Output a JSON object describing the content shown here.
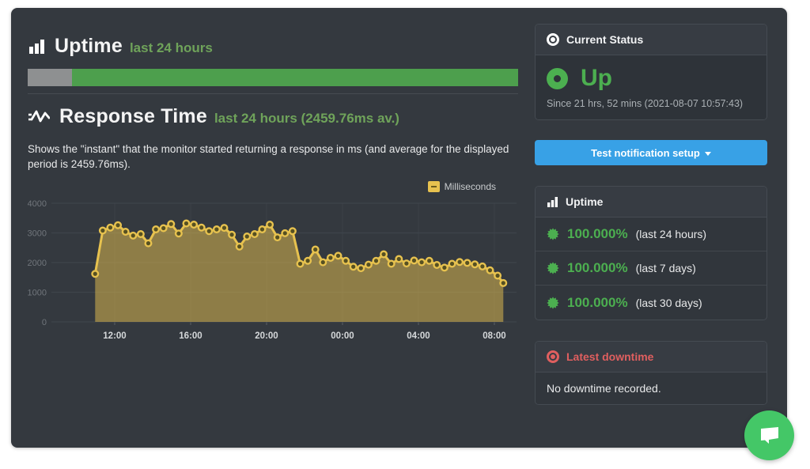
{
  "uptime_section": {
    "title": "Uptime",
    "subtitle": "last 24 hours",
    "bar": {
      "unknown_pct": 9,
      "up_pct": 91,
      "gray_color": "#8e9091",
      "green_color": "#4d9f4d"
    }
  },
  "response_section": {
    "title": "Response Time",
    "subtitle": "last 24 hours (2459.76ms av.)",
    "description": "Shows the \"instant\" that the monitor started returning a response in ms (and average for the displayed period is 2459.76ms)."
  },
  "chart_data": {
    "type": "area",
    "title": "Response Time last 24 hours",
    "legend": "Milliseconds",
    "legend_position": "top-right",
    "ylim": [
      0,
      4000
    ],
    "yticks": [
      0,
      1000,
      2000,
      3000,
      4000
    ],
    "xticks": [
      {
        "hour": 12,
        "label": "12:00"
      },
      {
        "hour": 16,
        "label": "16:00"
      },
      {
        "hour": 20,
        "label": "20:00"
      },
      {
        "hour": 24,
        "label": "00:00"
      },
      {
        "hour": 28,
        "label": "04:00"
      },
      {
        "hour": 32,
        "label": "08:00"
      }
    ],
    "average_ms": 2459.76,
    "line_color": "#e7c24f",
    "fill_color": "rgba(231,194,79,0.5)",
    "marker_center_color": "#565022",
    "grid": true,
    "series": [
      {
        "name": "Milliseconds",
        "x_hours": [
          10.97,
          11.37,
          11.77,
          12.17,
          12.57,
          12.97,
          13.37,
          13.77,
          14.17,
          14.57,
          14.97,
          15.37,
          15.77,
          16.17,
          16.57,
          16.97,
          17.37,
          17.77,
          18.17,
          18.57,
          18.97,
          19.37,
          19.77,
          20.17,
          20.57,
          20.97,
          21.37,
          21.77,
          22.17,
          22.57,
          22.97,
          23.37,
          23.77,
          24.17,
          24.57,
          24.97,
          25.37,
          25.77,
          26.17,
          26.57,
          26.97,
          27.37,
          27.77,
          28.17,
          28.57,
          28.97,
          29.37,
          29.77,
          30.17,
          30.57,
          30.97,
          31.37,
          31.77,
          32.17,
          32.47
        ],
        "values": [
          1620,
          3080,
          3180,
          3260,
          3040,
          2910,
          2960,
          2650,
          3120,
          3160,
          3300,
          2980,
          3320,
          3280,
          3180,
          3060,
          3120,
          3170,
          2940,
          2540,
          2880,
          2960,
          3120,
          3280,
          2850,
          2990,
          3060,
          1960,
          2060,
          2440,
          2010,
          2160,
          2230,
          2060,
          1860,
          1810,
          1930,
          2060,
          2280,
          1960,
          2120,
          1970,
          2070,
          2010,
          2060,
          1920,
          1830,
          1960,
          2020,
          1990,
          1940,
          1870,
          1740,
          1560,
          1310
        ]
      }
    ]
  },
  "sidebar": {
    "current_status": {
      "title": "Current Status",
      "status": "Up",
      "since": "Since 21 hrs, 52 mins (2021-08-07 10:57:43)"
    },
    "notification_button": "Test notification setup",
    "uptime_panel": {
      "title": "Uptime",
      "rows": [
        {
          "value": "100.000%",
          "label": "(last 24 hours)"
        },
        {
          "value": "100.000%",
          "label": "(last 7 days)"
        },
        {
          "value": "100.000%",
          "label": "(last 30 days)"
        }
      ]
    },
    "downtime_panel": {
      "title": "Latest downtime",
      "body": "No downtime recorded."
    }
  },
  "colors": {
    "panel_bg": "#34393f",
    "accent_green": "#4caf50",
    "accent_blue": "#38a1e6",
    "accent_red": "#e05f5f",
    "accent_yellow": "#e7c24f",
    "chat_green": "#44c767"
  }
}
